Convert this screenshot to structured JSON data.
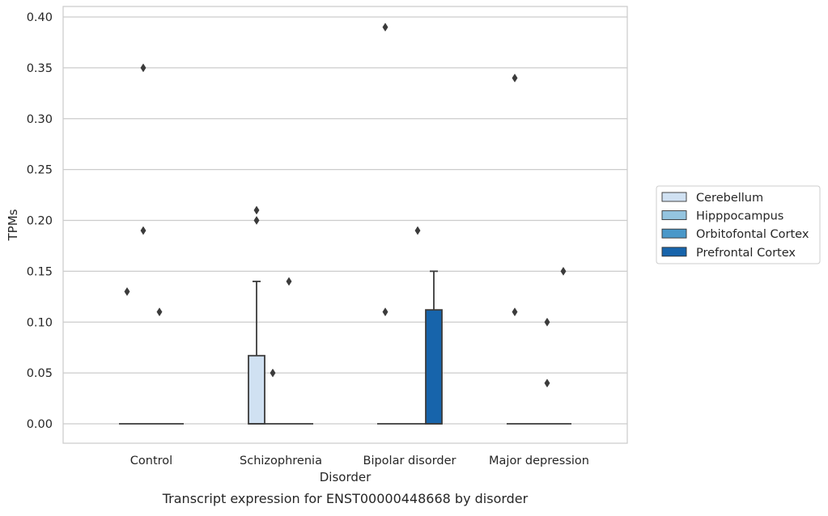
{
  "chart_data": {
    "type": "box",
    "title": "Transcript expression for ENST00000448668 by disorder",
    "xlabel": "Disorder",
    "ylabel": "TPMs",
    "ylim": [
      -0.019,
      0.41
    ],
    "yticks": [
      "0.00",
      "0.05",
      "0.10",
      "0.15",
      "0.20",
      "0.25",
      "0.30",
      "0.35",
      "0.40"
    ],
    "grid": "horizontal",
    "legend_position": "right",
    "categories": [
      "Control",
      "Schizophrenia",
      "Bipolar disorder",
      "Major depression"
    ],
    "series": [
      {
        "name": "Cerebellum",
        "color": "#d0e1f2",
        "boxes": [
          {
            "q1": 0,
            "median": 0,
            "q3": 0,
            "whisker_low": 0,
            "whisker_high": 0,
            "outliers": [
              0.13
            ]
          },
          {
            "q1": 0,
            "median": 0,
            "q3": 0.067,
            "whisker_low": 0,
            "whisker_high": 0.14,
            "outliers": [
              0.2,
              0.21
            ]
          },
          {
            "q1": 0,
            "median": 0,
            "q3": 0,
            "whisker_low": 0,
            "whisker_high": 0,
            "outliers": [
              0.11,
              0.39
            ]
          },
          {
            "q1": 0,
            "median": 0,
            "q3": 0,
            "whisker_low": 0,
            "whisker_high": 0,
            "outliers": [
              0.11,
              0.34
            ]
          }
        ]
      },
      {
        "name": "Hipppocampus",
        "color": "#94c4df",
        "boxes": [
          {
            "q1": 0,
            "median": 0,
            "q3": 0,
            "whisker_low": 0,
            "whisker_high": 0,
            "outliers": [
              0.19,
              0.35
            ]
          },
          {
            "q1": 0,
            "median": 0,
            "q3": 0,
            "whisker_low": 0,
            "whisker_high": 0,
            "outliers": [
              0.05
            ]
          },
          {
            "q1": 0,
            "median": 0,
            "q3": 0,
            "whisker_low": 0,
            "whisker_high": 0,
            "outliers": []
          },
          {
            "q1": 0,
            "median": 0,
            "q3": 0,
            "whisker_low": 0,
            "whisker_high": 0,
            "outliers": []
          }
        ]
      },
      {
        "name": "Orbitofontal Cortex",
        "color": "#4a98c9",
        "boxes": [
          {
            "q1": 0,
            "median": 0,
            "q3": 0,
            "whisker_low": 0,
            "whisker_high": 0,
            "outliers": [
              0.11
            ]
          },
          {
            "q1": 0,
            "median": 0,
            "q3": 0,
            "whisker_low": 0,
            "whisker_high": 0,
            "outliers": [
              0.14
            ]
          },
          {
            "q1": 0,
            "median": 0,
            "q3": 0,
            "whisker_low": 0,
            "whisker_high": 0,
            "outliers": [
              0.19
            ]
          },
          {
            "q1": 0,
            "median": 0,
            "q3": 0,
            "whisker_low": 0,
            "whisker_high": 0,
            "outliers": [
              0.04,
              0.1
            ]
          }
        ]
      },
      {
        "name": "Prefrontal Cortex",
        "color": "#1764ab",
        "boxes": [
          {
            "q1": 0,
            "median": 0,
            "q3": 0,
            "whisker_low": 0,
            "whisker_high": 0,
            "outliers": []
          },
          {
            "q1": 0,
            "median": 0,
            "q3": 0,
            "whisker_low": 0,
            "whisker_high": 0,
            "outliers": []
          },
          {
            "q1": 0,
            "median": 0,
            "q3": 0.112,
            "whisker_low": 0,
            "whisker_high": 0.15,
            "outliers": []
          },
          {
            "q1": 0,
            "median": 0,
            "q3": 0,
            "whisker_low": 0,
            "whisker_high": 0,
            "outliers": [
              0.15
            ]
          }
        ]
      }
    ]
  }
}
